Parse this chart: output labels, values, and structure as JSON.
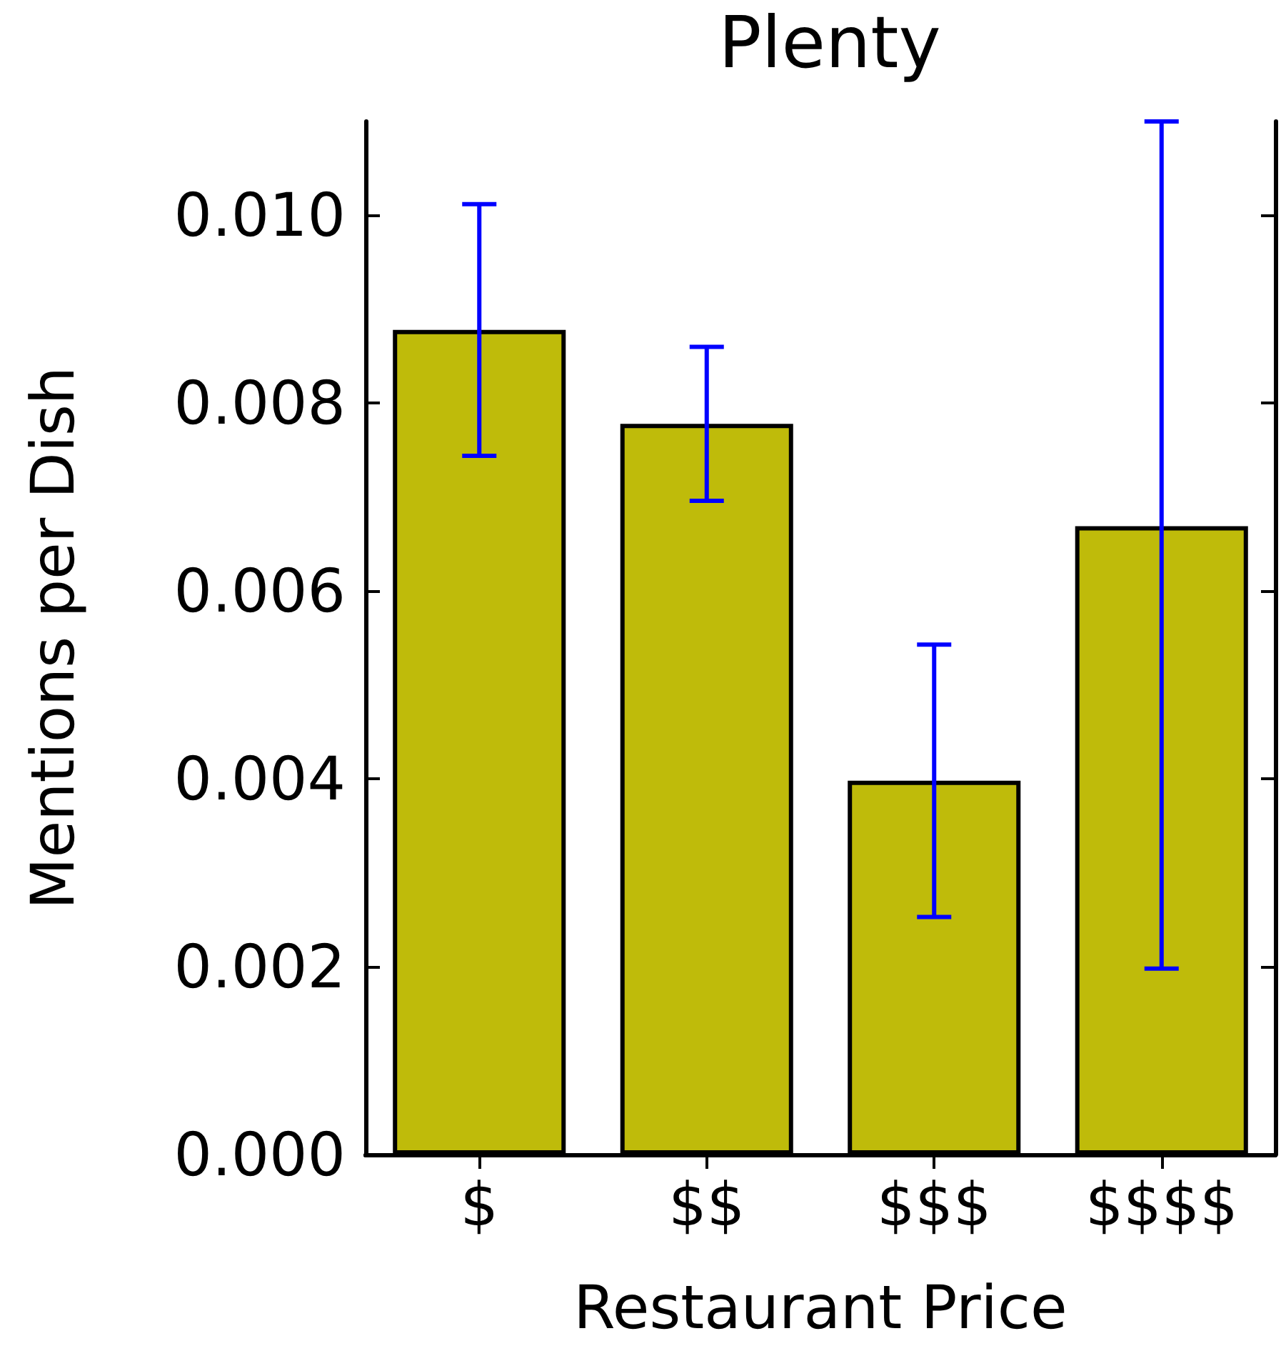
{
  "chart_data": {
    "type": "bar",
    "title": "Plenty",
    "xlabel": "Restaurant Price",
    "ylabel": "Mentions per Dish",
    "categories": [
      "$",
      "$$",
      "$$$",
      "$$$$"
    ],
    "series": [
      {
        "color": "#bfbb0a",
        "values": [
          0.00878,
          0.00778,
          0.00398,
          0.00669
        ],
        "errors": [
          0.00134,
          0.00082,
          0.00145,
          [
            0.00198,
            0.011
          ]
        ]
      }
    ],
    "ylim": [
      0,
      0.011
    ],
    "yticks": [
      {
        "value": 0,
        "label": "0.000"
      },
      {
        "value": 0.002,
        "label": "0.002"
      },
      {
        "value": 0.004,
        "label": "0.004"
      },
      {
        "value": 0.006,
        "label": "0.006"
      },
      {
        "value": 0.008,
        "label": "0.008"
      },
      {
        "value": 0.01,
        "label": "0.010"
      }
    ],
    "grid": false
  }
}
